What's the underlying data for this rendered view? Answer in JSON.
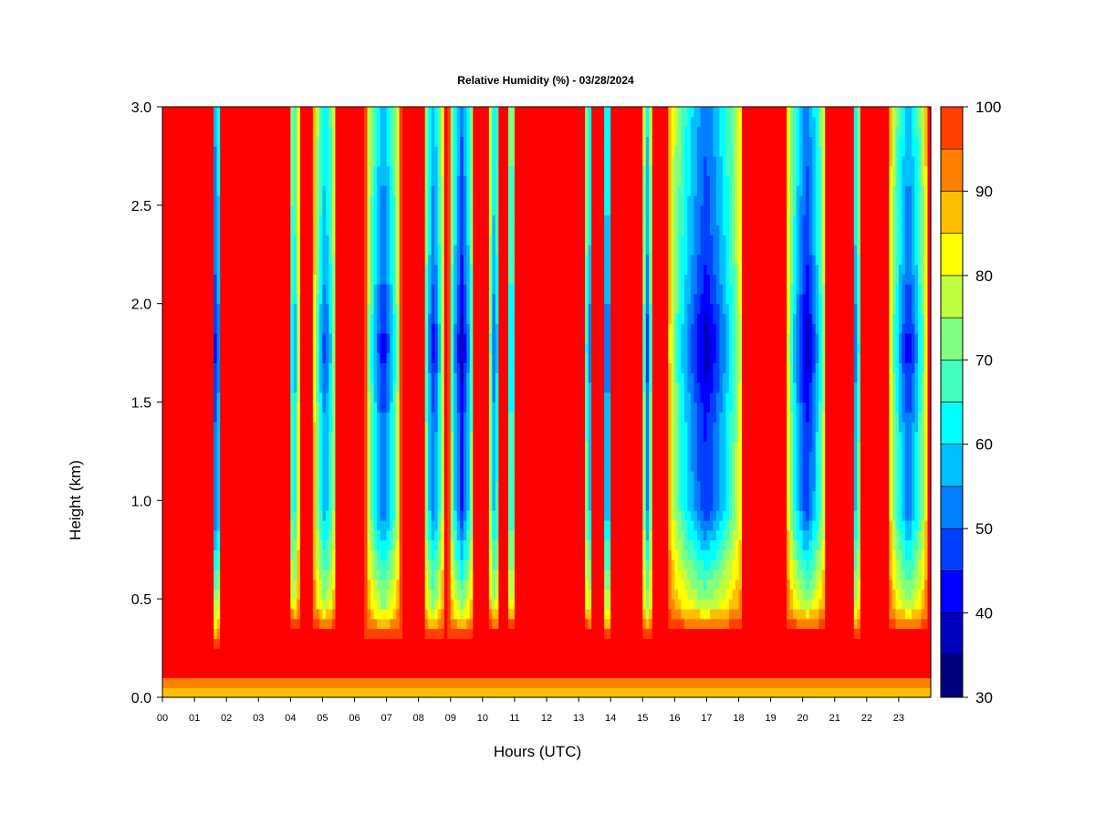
{
  "chart_data": {
    "type": "heatmap",
    "title": "Relative Humidity (%) - 03/28/2024",
    "xlabel": "Hours (UTC)",
    "ylabel": "Height (km)",
    "xlim": [
      0,
      24
    ],
    "ylim": [
      0,
      3
    ],
    "x_ticks": [
      {
        "value": 0,
        "label": "00"
      },
      {
        "value": 1,
        "label": "01"
      },
      {
        "value": 2,
        "label": "02"
      },
      {
        "value": 3,
        "label": "03"
      },
      {
        "value": 4,
        "label": "04"
      },
      {
        "value": 5,
        "label": "05"
      },
      {
        "value": 6,
        "label": "06"
      },
      {
        "value": 7,
        "label": "07"
      },
      {
        "value": 8,
        "label": "08"
      },
      {
        "value": 9,
        "label": "09"
      },
      {
        "value": 10,
        "label": "10"
      },
      {
        "value": 11,
        "label": "11"
      },
      {
        "value": 12,
        "label": "12"
      },
      {
        "value": 13,
        "label": "13"
      },
      {
        "value": 14,
        "label": "14"
      },
      {
        "value": 15,
        "label": "15"
      },
      {
        "value": 16,
        "label": "16"
      },
      {
        "value": 17,
        "label": "17"
      },
      {
        "value": 18,
        "label": "18"
      },
      {
        "value": 19,
        "label": "19"
      },
      {
        "value": 20,
        "label": "20"
      },
      {
        "value": 21,
        "label": "21"
      },
      {
        "value": 22,
        "label": "22"
      },
      {
        "value": 23,
        "label": "23"
      }
    ],
    "y_ticks": [
      {
        "value": 0.0,
        "label": "0.0"
      },
      {
        "value": 0.5,
        "label": "0.5"
      },
      {
        "value": 1.0,
        "label": "1.0"
      },
      {
        "value": 1.5,
        "label": "1.5"
      },
      {
        "value": 2.0,
        "label": "2.0"
      },
      {
        "value": 2.5,
        "label": "2.5"
      },
      {
        "value": 3.0,
        "label": "3.0"
      }
    ],
    "colorbar": {
      "min": 30,
      "max": 100,
      "step": 5,
      "tick_values": [
        30,
        40,
        50,
        60,
        70,
        80,
        90,
        100
      ],
      "tick_labels": [
        "30",
        "40",
        "50",
        "60",
        "70",
        "80",
        "90",
        "100"
      ],
      "colors": [
        "#00007F",
        "#0000BF",
        "#0000FF",
        "#0040FF",
        "#0080FF",
        "#00BFFF",
        "#00FFFF",
        "#40FFBF",
        "#80FF80",
        "#BFFF40",
        "#FFFF00",
        "#FFBF00",
        "#FF8000",
        "#FF4000",
        "#FF0000",
        "#BF0000",
        "#7F0000"
      ]
    },
    "background_value": 100,
    "moist_windows_utc": [
      {
        "start": 1.58,
        "end": 1.8,
        "min_rh": 40,
        "base_km": 0.4
      },
      {
        "start": 3.95,
        "end": 4.28,
        "min_rh": 60,
        "base_km": 0.5
      },
      {
        "start": 4.72,
        "end": 5.45,
        "min_rh": 55,
        "base_km": 0.48
      },
      {
        "start": 6.35,
        "end": 7.45,
        "min_rh": 50,
        "base_km": 0.45
      },
      {
        "start": 8.15,
        "end": 8.8,
        "min_rh": 50,
        "base_km": 0.45
      },
      {
        "start": 8.95,
        "end": 9.75,
        "min_rh": 45,
        "base_km": 0.45
      },
      {
        "start": 10.2,
        "end": 10.55,
        "min_rh": 55,
        "base_km": 0.48
      },
      {
        "start": 10.75,
        "end": 11.05,
        "min_rh": 60,
        "base_km": 0.5
      },
      {
        "start": 13.2,
        "end": 13.45,
        "min_rh": 55,
        "base_km": 0.48
      },
      {
        "start": 13.75,
        "end": 14.05,
        "min_rh": 50,
        "base_km": 0.45
      },
      {
        "start": 15.0,
        "end": 15.3,
        "min_rh": 55,
        "base_km": 0.45
      },
      {
        "start": 15.8,
        "end": 18.15,
        "min_rh": 45,
        "base_km": 0.48
      },
      {
        "start": 19.5,
        "end": 20.75,
        "min_rh": 45,
        "base_km": 0.48
      },
      {
        "start": 21.55,
        "end": 21.8,
        "min_rh": 55,
        "base_km": 0.45
      },
      {
        "start": 22.7,
        "end": 23.9,
        "min_rh": 50,
        "base_km": 0.48
      }
    ]
  }
}
